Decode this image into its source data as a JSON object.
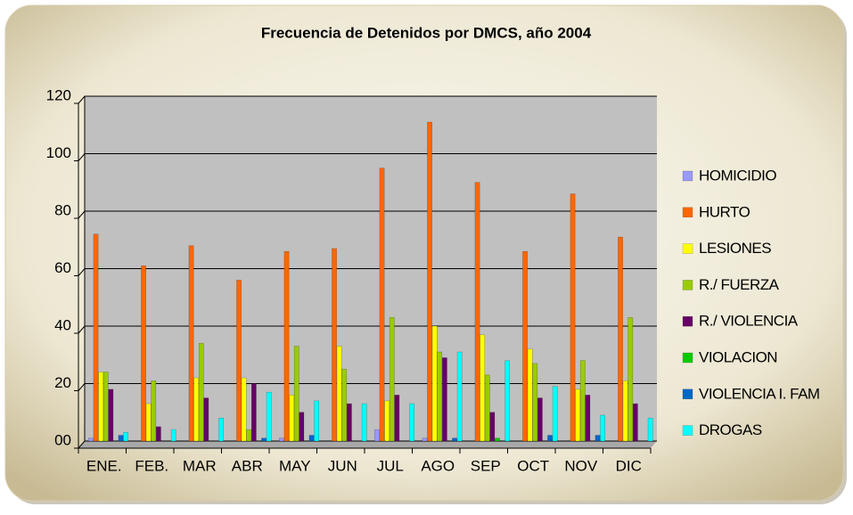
{
  "chart_data": {
    "type": "bar",
    "title": "Frecuencia de Detenidos por DMCS, año 2004",
    "categories": [
      "ENE.",
      "FEB.",
      "MAR",
      "ABR",
      "MAY",
      "JUN",
      "JUL",
      "AGO",
      "SEP",
      "OCT",
      "NOV",
      "DIC"
    ],
    "series": [
      {
        "name": "HOMICIDIO",
        "color": "#9999ff",
        "values": [
          1,
          0,
          0,
          0,
          1,
          0,
          4,
          1,
          0,
          0,
          0,
          0
        ]
      },
      {
        "name": "HURTO",
        "color": "#ff6600",
        "values": [
          72,
          61,
          68,
          56,
          66,
          67,
          95,
          111,
          90,
          66,
          86,
          71
        ]
      },
      {
        "name": "LESIONES",
        "color": "#ffff00",
        "values": [
          24,
          13,
          22,
          22,
          16,
          33,
          14,
          40,
          37,
          32,
          18,
          21
        ]
      },
      {
        "name": "R./ FUERZA",
        "color": "#99cc00",
        "values": [
          24,
          21,
          34,
          4,
          33,
          25,
          43,
          31,
          23,
          27,
          28,
          43
        ]
      },
      {
        "name": "R./ VIOLENCIA",
        "color": "#660066",
        "values": [
          18,
          5,
          15,
          20,
          10,
          13,
          16,
          29,
          10,
          15,
          16,
          13
        ]
      },
      {
        "name": "VIOLACION",
        "color": "#00cc00",
        "values": [
          0,
          0,
          0,
          0,
          0,
          0,
          0,
          0,
          1,
          0,
          0,
          0
        ]
      },
      {
        "name": "VIOLENCIA I. FAM",
        "color": "#0066cc",
        "values": [
          2,
          0,
          0,
          1,
          2,
          0,
          0,
          1,
          0,
          2,
          2,
          0
        ]
      },
      {
        "name": "DROGAS",
        "color": "#00ffff",
        "values": [
          3,
          4,
          8,
          17,
          14,
          13,
          13,
          31,
          28,
          19,
          9,
          8
        ]
      }
    ],
    "ylim": [
      0,
      120
    ],
    "yticks": [
      {
        "value": 0,
        "label": "00"
      },
      20,
      40,
      60,
      80,
      100,
      120
    ],
    "grid": true,
    "legend": "right"
  }
}
